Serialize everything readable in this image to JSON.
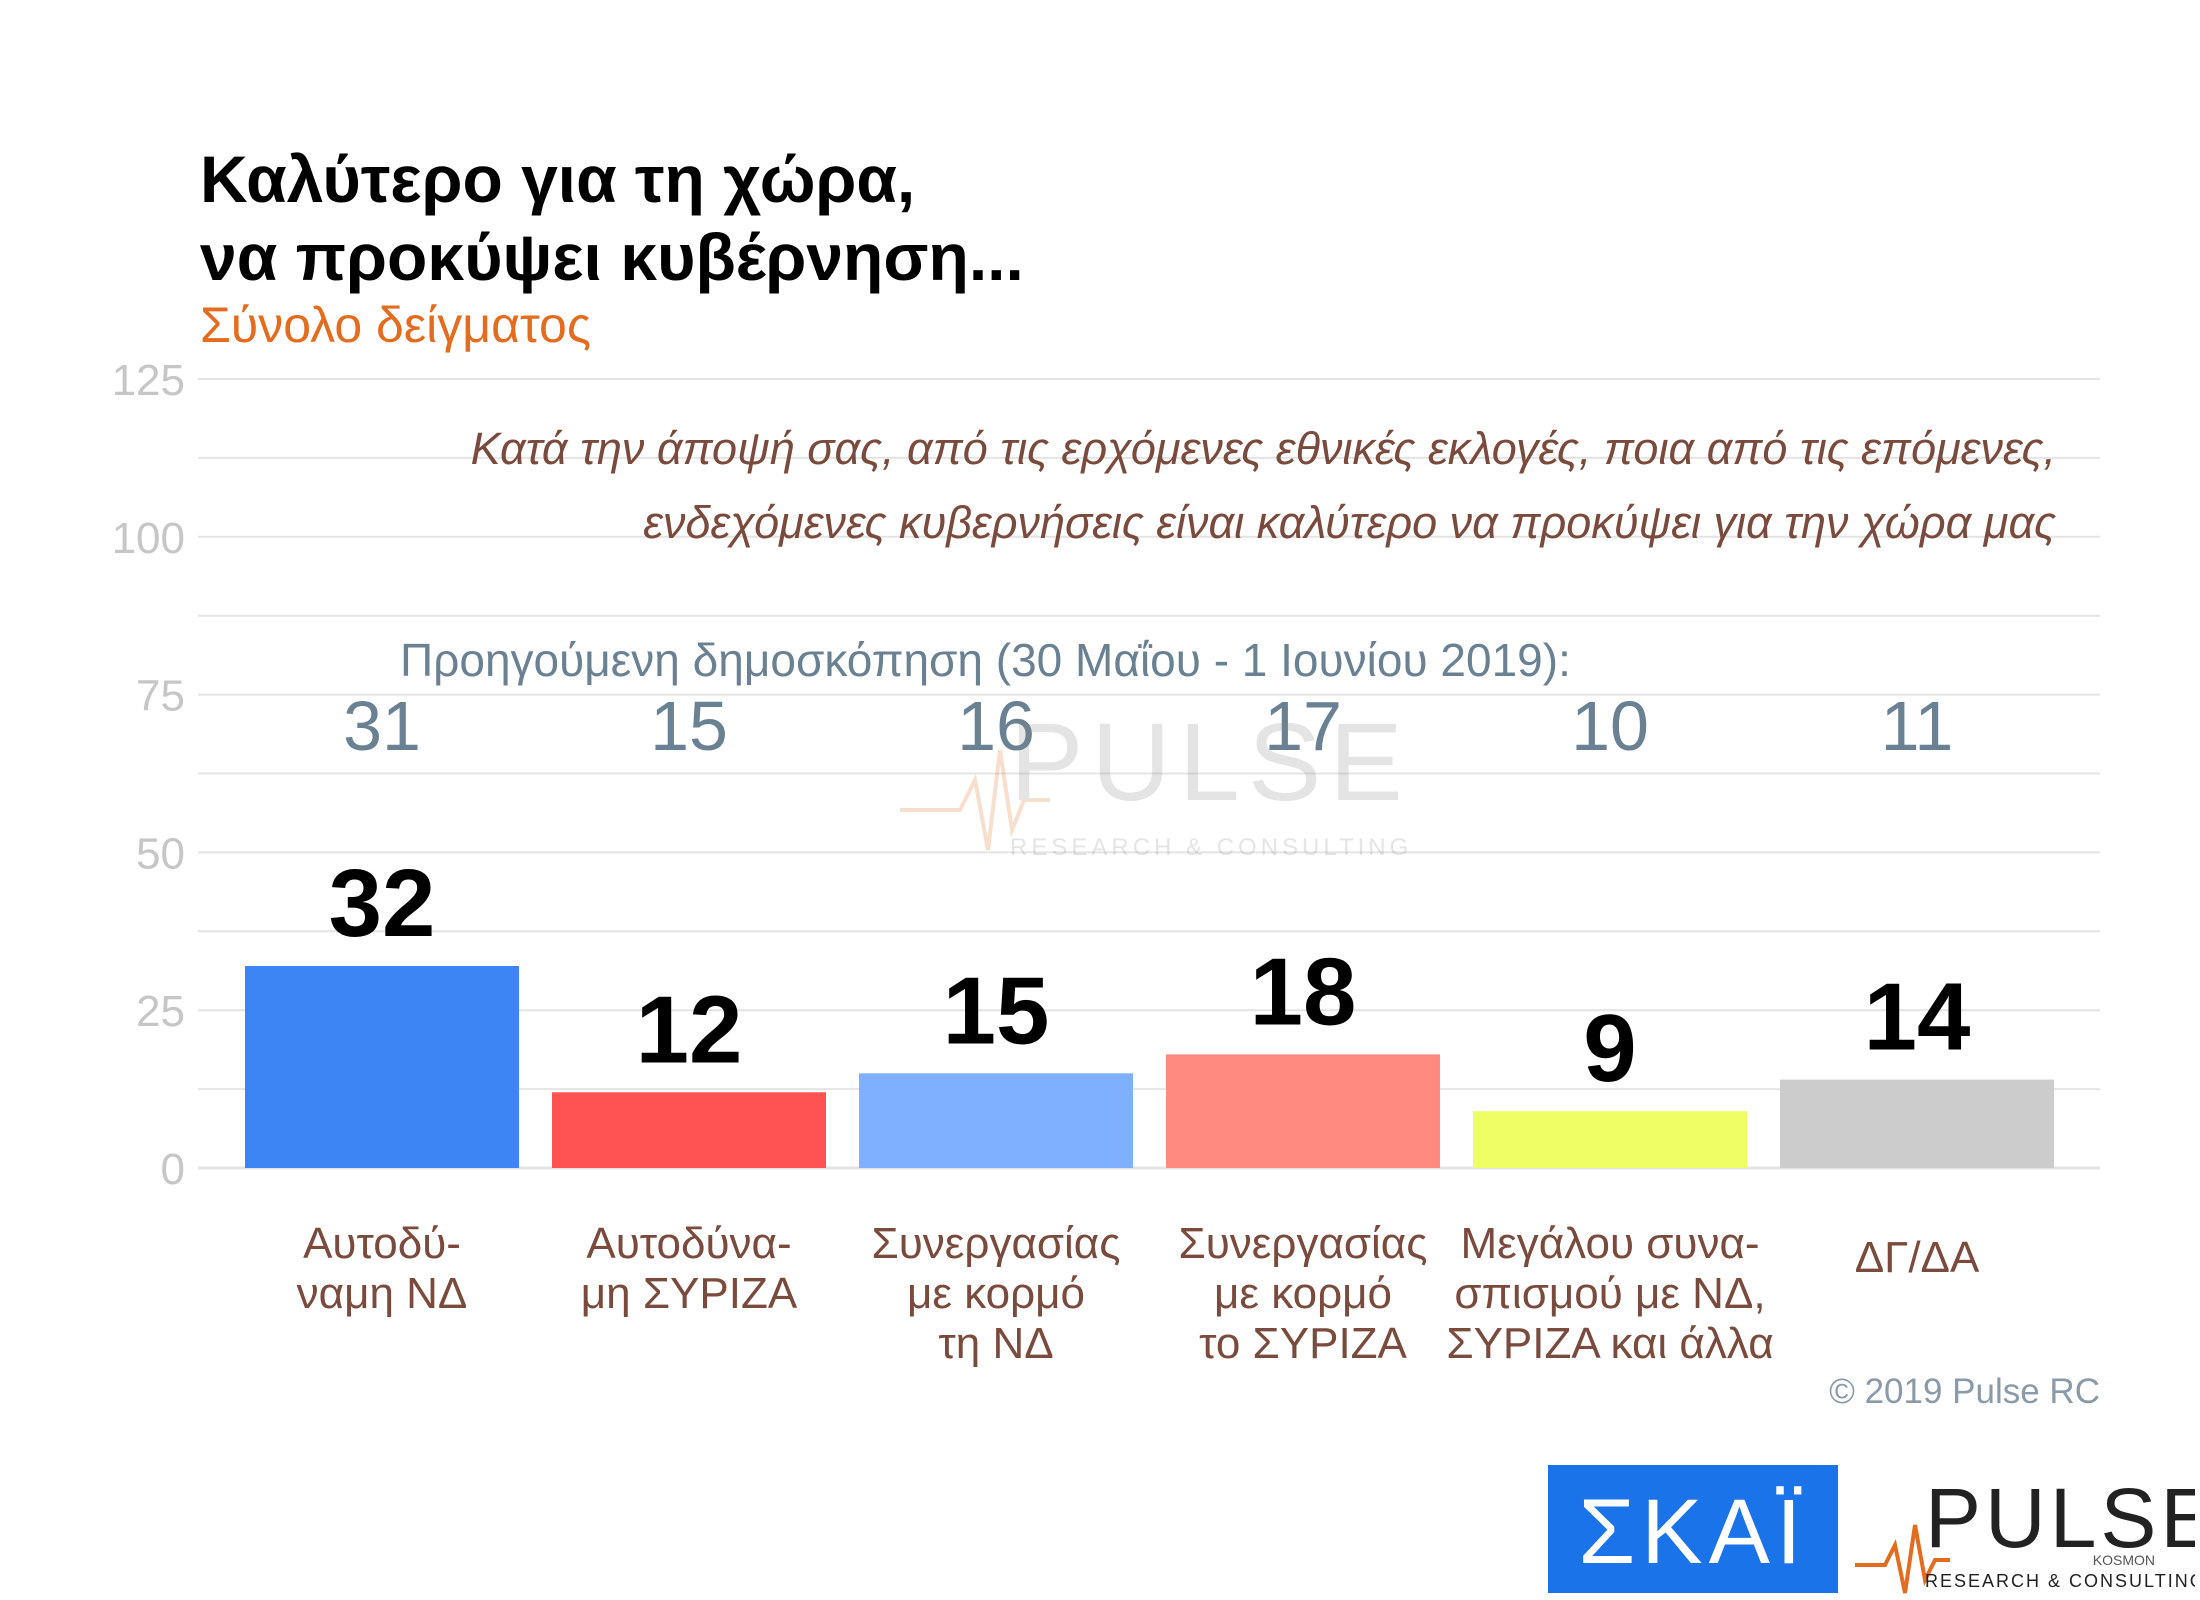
{
  "header": {
    "title_line1": "Καλύτερο για τη χώρα,",
    "title_line2": "να προκύψει κυβέρνηση...",
    "subtitle": "Σύνολο δείγματος"
  },
  "question": {
    "line1": "Κατά την άποψή σας, από τις ερχόμενες εθνικές εκλογές, ποια από τις επόμενες,",
    "line2": "ενδεχόμενες κυβερνήσεις είναι καλύτερο να προκύψει για την χώρα μας"
  },
  "previous": {
    "label": "Προηγούμενη δημοσκόπηση (30 Μαΐου - 1 Ιουνίου 2019):"
  },
  "footer": {
    "copyright": "© 2019 Pulse RC"
  },
  "logos": {
    "skai": "ΣΚΑΪ",
    "pulse": "PULSE",
    "pulse_sub": "RESEARCH & CONSULTING",
    "pulse_tag": "KOSMON"
  },
  "colors": {
    "grid": "#e4e4e4",
    "axis_tick": "#c6c6c6",
    "category_label": "#7a4a3c",
    "value_label": "#000000",
    "previous_value": "#6a8193"
  },
  "chart_data": {
    "type": "bar",
    "categories": [
      [
        "Αυτοδύ-",
        "ναμη ΝΔ"
      ],
      [
        "Αυτοδύνα-",
        "μη ΣΥΡΙΖΑ"
      ],
      [
        "Συνεργασίας",
        "με κορμό",
        "τη ΝΔ"
      ],
      [
        "Συνεργασίας",
        "με κορμό",
        "το ΣΥΡΙΖΑ"
      ],
      [
        "Μεγάλου συνα-",
        "σπισμού με ΝΔ,",
        "ΣΥΡΙΖΑ και άλλα"
      ],
      [
        "ΔΓ/ΔΑ"
      ]
    ],
    "values": [
      32,
      12,
      15,
      18,
      9,
      14
    ],
    "previous_values": [
      31,
      15,
      16,
      17,
      10,
      11
    ],
    "bar_colors": [
      "#3d85f5",
      "#ff5252",
      "#7fb0ff",
      "#ff8a80",
      "#eeff66",
      "#cccccc"
    ],
    "yticks": [
      0,
      25,
      50,
      75,
      100,
      125
    ],
    "ylim": [
      0,
      125
    ],
    "grid": true
  }
}
